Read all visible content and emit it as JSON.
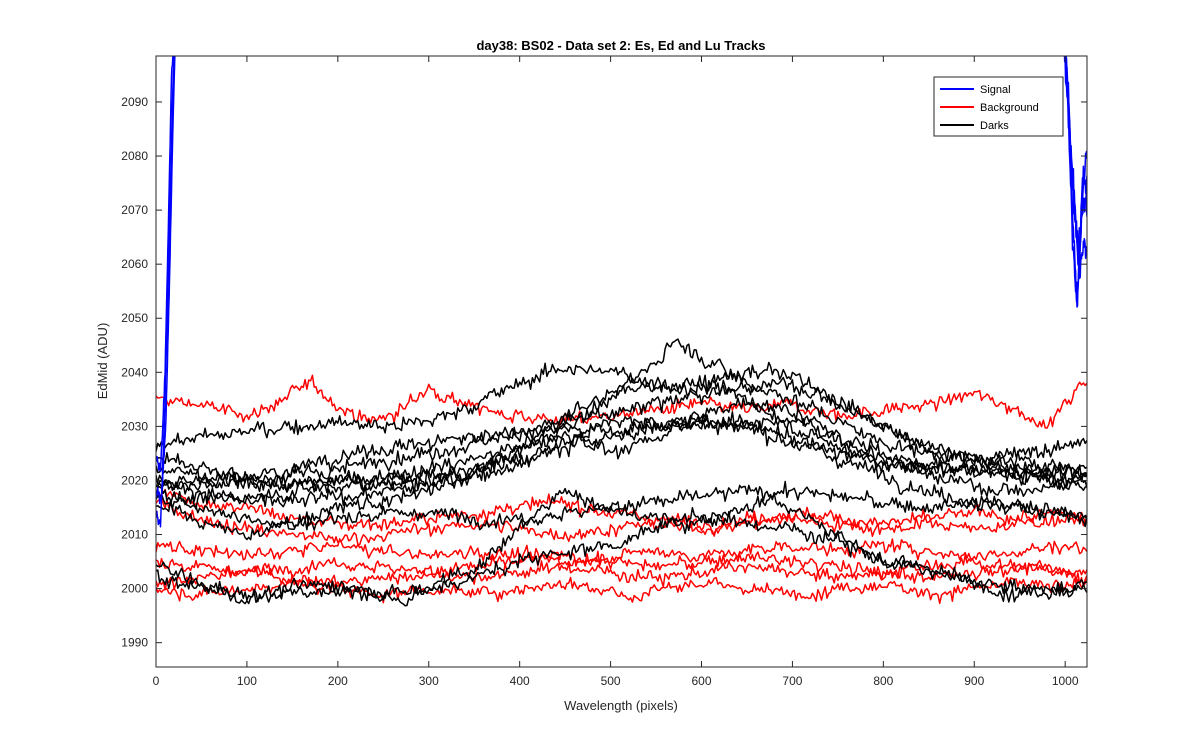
{
  "chart_data": {
    "type": "line",
    "title": "day38: BS02 - Data set 2: Es, Ed and Lu Tracks",
    "xlabel": "Wavelength (pixels)",
    "ylabel": "EdMid (ADU)",
    "xlim": [
      0,
      1024
    ],
    "ylim": [
      1985.5,
      2098.5
    ],
    "xticks": [
      0,
      100,
      200,
      300,
      400,
      500,
      600,
      700,
      800,
      900,
      1000
    ],
    "yticks": [
      1990,
      2000,
      2010,
      2020,
      2030,
      2040,
      2050,
      2060,
      2070,
      2080,
      2090
    ],
    "grid": false,
    "legend_placement": "top-right",
    "legend": [
      {
        "label": "Signal",
        "color": "#0000ff"
      },
      {
        "label": "Background",
        "color": "#ff0000"
      },
      {
        "label": "Darks",
        "color": "#000000"
      }
    ],
    "series": [
      {
        "group": "Signal",
        "color": "#0000ff",
        "noise": 0.8,
        "x": [
          0,
          5,
          10,
          14,
          18,
          20
        ],
        "y": [
          2014,
          2012,
          2035,
          2060,
          2090,
          2100
        ]
      },
      {
        "group": "Signal",
        "color": "#0000ff",
        "noise": 0.8,
        "x": [
          0,
          5,
          10,
          14,
          17,
          19
        ],
        "y": [
          2024,
          2022,
          2040,
          2070,
          2095,
          2100
        ]
      },
      {
        "group": "Signal",
        "color": "#0000ff",
        "noise": 0.8,
        "x": [
          0,
          6,
          11,
          15,
          19,
          21
        ],
        "y": [
          2018,
          2016,
          2032,
          2058,
          2088,
          2100
        ]
      },
      {
        "group": "Signal",
        "color": "#0000ff",
        "noise": 1.5,
        "x": [
          1000,
          1004,
          1008,
          1012,
          1016,
          1020,
          1024
        ],
        "y": [
          2100,
          2092,
          2070,
          2055,
          2060,
          2075,
          2082
        ]
      },
      {
        "group": "Signal",
        "color": "#0000ff",
        "noise": 1.5,
        "x": [
          999,
          1003,
          1008,
          1013,
          1018,
          1024
        ],
        "y": [
          2100,
          2088,
          2065,
          2052,
          2068,
          2075
        ]
      },
      {
        "group": "Signal",
        "color": "#0000ff",
        "noise": 1.5,
        "x": [
          1001,
          1005,
          1010,
          1015,
          1020,
          1024
        ],
        "y": [
          2100,
          2085,
          2072,
          2062,
          2078,
          2070
        ]
      },
      {
        "group": "Signal",
        "color": "#0000ff",
        "noise": 1.5,
        "x": [
          1000,
          1006,
          1011,
          1016,
          1021,
          1024
        ],
        "y": [
          2100,
          2080,
          2068,
          2058,
          2064,
          2062
        ]
      },
      {
        "group": "Background",
        "color": "#ff0000",
        "noise": 0.9,
        "x": [
          0,
          50,
          100,
          130,
          170,
          200,
          230,
          260,
          300,
          330,
          360,
          400,
          450,
          500,
          550,
          600,
          650,
          700,
          750,
          800,
          850,
          900,
          950,
          980,
          1000,
          1024
        ],
        "y": [
          2035,
          2034,
          2032,
          2034,
          2038,
          2034,
          2031,
          2032,
          2037,
          2035,
          2033,
          2032,
          2031,
          2032,
          2033,
          2034,
          2033,
          2034,
          2032,
          2033,
          2034,
          2036,
          2033,
          2030,
          2034,
          2039
        ]
      },
      {
        "group": "Background",
        "color": "#ff0000",
        "noise": 0.9,
        "x": [
          0,
          50,
          100,
          150,
          200,
          250,
          300,
          350,
          400,
          450,
          500,
          550,
          600,
          650,
          700,
          750,
          800,
          850,
          900,
          950,
          1000,
          1024
        ],
        "y": [
          2018,
          2016,
          2015,
          2013,
          2012,
          2012,
          2013,
          2014,
          2015,
          2016,
          2014,
          2013,
          2012,
          2013,
          2014,
          2013,
          2012,
          2013,
          2014,
          2013,
          2014,
          2013
        ]
      },
      {
        "group": "Background",
        "color": "#ff0000",
        "noise": 0.9,
        "x": [
          0,
          50,
          100,
          150,
          200,
          250,
          300,
          350,
          400,
          450,
          500,
          550,
          600,
          650,
          700,
          750,
          800,
          850,
          900,
          950,
          1000,
          1024
        ],
        "y": [
          2016,
          2013,
          2011,
          2010,
          2009,
          2010,
          2011,
          2012,
          2011,
          2010,
          2011,
          2012,
          2011,
          2012,
          2013,
          2012,
          2011,
          2012,
          2011,
          2012,
          2013,
          2012
        ]
      },
      {
        "group": "Background",
        "color": "#ff0000",
        "noise": 0.9,
        "x": [
          0,
          50,
          100,
          150,
          200,
          250,
          300,
          350,
          400,
          450,
          500,
          550,
          600,
          650,
          700,
          750,
          800,
          850,
          900,
          950,
          1000,
          1024
        ],
        "y": [
          2008,
          2007,
          2006,
          2007,
          2008,
          2007,
          2006,
          2007,
          2006,
          2005,
          2006,
          2007,
          2006,
          2007,
          2008,
          2007,
          2008,
          2007,
          2006,
          2007,
          2008,
          2007
        ]
      },
      {
        "group": "Background",
        "color": "#ff0000",
        "noise": 0.9,
        "x": [
          0,
          50,
          100,
          150,
          200,
          250,
          300,
          350,
          400,
          450,
          500,
          550,
          600,
          650,
          700,
          750,
          800,
          850,
          900,
          950,
          1000,
          1024
        ],
        "y": [
          2005,
          2004,
          2003,
          2004,
          2005,
          2004,
          2003,
          2004,
          2005,
          2006,
          2005,
          2004,
          2005,
          2006,
          2005,
          2004,
          2003,
          2004,
          2005,
          2004,
          2003,
          2004
        ]
      },
      {
        "group": "Background",
        "color": "#ff0000",
        "noise": 0.9,
        "x": [
          0,
          50,
          100,
          150,
          200,
          250,
          300,
          350,
          400,
          450,
          500,
          550,
          600,
          650,
          700,
          750,
          800,
          850,
          900,
          950,
          1000,
          1024
        ],
        "y": [
          2001,
          2002,
          2003,
          2002,
          2001,
          2002,
          2003,
          2002,
          2003,
          2004,
          2003,
          2002,
          2003,
          2004,
          2003,
          2002,
          2003,
          2002,
          2003,
          2004,
          2003,
          2002
        ]
      },
      {
        "group": "Background",
        "color": "#ff0000",
        "noise": 0.9,
        "x": [
          0,
          50,
          100,
          150,
          200,
          250,
          300,
          350,
          400,
          450,
          500,
          520,
          550,
          600,
          650,
          700,
          750,
          800,
          850,
          900,
          950,
          1000,
          1024
        ],
        "y": [
          2000,
          1999,
          2000,
          2001,
          2000,
          1999,
          2000,
          1999,
          2000,
          2001,
          2000,
          1998,
          2000,
          2001,
          2000,
          1999,
          2000,
          2001,
          1999,
          2000,
          2001,
          2000,
          2001
        ]
      },
      {
        "group": "Darks",
        "color": "#000000",
        "noise": 1.0,
        "x": [
          0,
          50,
          100,
          150,
          200,
          250,
          300,
          350,
          400,
          450,
          500,
          550,
          600,
          650,
          700,
          750,
          800,
          850,
          900,
          950,
          1000,
          1024
        ],
        "y": [
          2027,
          2028,
          2029,
          2030,
          2031,
          2030,
          2031,
          2034,
          2038,
          2041,
          2040,
          2038,
          2036,
          2037,
          2038,
          2034,
          2030,
          2026,
          2024,
          2022,
          2021,
          2022
        ]
      },
      {
        "group": "Darks",
        "color": "#000000",
        "noise": 1.0,
        "x": [
          0,
          50,
          100,
          150,
          200,
          250,
          300,
          350,
          400,
          450,
          500,
          550,
          570,
          600,
          650,
          700,
          750,
          800,
          850,
          900,
          950,
          1000,
          1024
        ],
        "y": [
          2022,
          2021,
          2020,
          2019,
          2020,
          2019,
          2020,
          2022,
          2025,
          2030,
          2035,
          2042,
          2046,
          2043,
          2038,
          2035,
          2031,
          2027,
          2025,
          2024,
          2022,
          2022,
          2023
        ]
      },
      {
        "group": "Darks",
        "color": "#000000",
        "noise": 1.0,
        "x": [
          0,
          50,
          100,
          150,
          200,
          250,
          300,
          350,
          400,
          450,
          500,
          550,
          600,
          650,
          700,
          750,
          800,
          850,
          900,
          950,
          1000,
          1024
        ],
        "y": [
          2020,
          2019,
          2020,
          2021,
          2022,
          2024,
          2025,
          2027,
          2029,
          2031,
          2032,
          2034,
          2037,
          2040,
          2040,
          2035,
          2030,
          2026,
          2024,
          2025,
          2026,
          2028
        ]
      },
      {
        "group": "Darks",
        "color": "#000000",
        "noise": 1.0,
        "x": [
          0,
          50,
          100,
          150,
          200,
          250,
          300,
          350,
          400,
          450,
          500,
          550,
          600,
          650,
          700,
          750,
          800,
          850,
          900,
          950,
          1000,
          1024
        ],
        "y": [
          2019,
          2020,
          2021,
          2022,
          2024,
          2026,
          2027,
          2028,
          2029,
          2030,
          2029,
          2030,
          2031,
          2030,
          2028,
          2025,
          2023,
          2022,
          2022,
          2021,
          2020,
          2020
        ]
      },
      {
        "group": "Darks",
        "color": "#000000",
        "noise": 1.0,
        "x": [
          0,
          50,
          100,
          150,
          200,
          250,
          300,
          350,
          400,
          450,
          500,
          550,
          600,
          650,
          700,
          750,
          800,
          850,
          900,
          950,
          1000,
          1024
        ],
        "y": [
          2017,
          2016,
          2017,
          2018,
          2019,
          2020,
          2021,
          2022,
          2024,
          2026,
          2028,
          2030,
          2031,
          2030,
          2027,
          2024,
          2021,
          2018,
          2016,
          2015,
          2014,
          2013
        ]
      },
      {
        "group": "Darks",
        "color": "#000000",
        "noise": 1.0,
        "x": [
          0,
          50,
          100,
          150,
          200,
          250,
          300,
          350,
          400,
          450,
          500,
          550,
          600,
          650,
          700,
          750,
          800,
          850,
          900,
          950,
          1000,
          1024
        ],
        "y": [
          2024,
          2022,
          2020,
          2019,
          2020,
          2021,
          2022,
          2024,
          2026,
          2029,
          2025,
          2028,
          2032,
          2035,
          2033,
          2028,
          2025,
          2022,
          2022,
          2021,
          2020,
          2021
        ]
      },
      {
        "group": "Darks",
        "color": "#000000",
        "noise": 1.0,
        "x": [
          0,
          50,
          100,
          150,
          200,
          250,
          300,
          350,
          400,
          450,
          500,
          550,
          600,
          650,
          700,
          750,
          800,
          850,
          900,
          950,
          1000,
          1024
        ],
        "y": [
          2016,
          2012,
          2010,
          2012,
          2015,
          2016,
          2018,
          2021,
          2026,
          2032,
          2036,
          2038,
          2038,
          2035,
          2030,
          2026,
          2024,
          2023,
          2022,
          2024,
          2022,
          2021
        ]
      },
      {
        "group": "Darks",
        "color": "#000000",
        "noise": 1.0,
        "x": [
          0,
          50,
          100,
          150,
          200,
          250,
          300,
          350,
          400,
          450,
          500,
          550,
          600,
          650,
          700,
          750,
          800,
          850,
          900,
          950,
          1000,
          1024
        ],
        "y": [
          2018,
          2015,
          2013,
          2012,
          2013,
          2014,
          2014,
          2013,
          2013,
          2014,
          2015,
          2016,
          2017,
          2018,
          2018,
          2017,
          2016,
          2015,
          2016,
          2015,
          2014,
          2013
        ]
      },
      {
        "group": "Darks",
        "color": "#000000",
        "noise": 1.0,
        "x": [
          0,
          50,
          100,
          150,
          200,
          250,
          270,
          300,
          350,
          400,
          440,
          450,
          500,
          550,
          600,
          650,
          700,
          750,
          800,
          850,
          900,
          950,
          1000,
          1024
        ],
        "y": [
          2004,
          2001,
          1998,
          1999,
          2000,
          1999,
          1997,
          2000,
          2004,
          2011,
          2017,
          2018,
          2015,
          2013,
          2013,
          2012,
          2011,
          2009,
          2005,
          2003,
          2001,
          2000,
          2000,
          2000
        ]
      },
      {
        "group": "Darks",
        "color": "#000000",
        "noise": 1.0,
        "x": [
          0,
          50,
          100,
          150,
          200,
          250,
          300,
          350,
          400,
          450,
          500,
          550,
          600,
          650,
          680,
          700,
          750,
          800,
          850,
          900,
          950,
          1000,
          1024
        ],
        "y": [
          2002,
          2000,
          1999,
          2000,
          2001,
          1999,
          2000,
          2002,
          2005,
          2007,
          2008,
          2011,
          2013,
          2015,
          2017,
          2015,
          2010,
          2005,
          2004,
          2001,
          1999,
          2000,
          2001
        ]
      },
      {
        "group": "Darks",
        "color": "#000000",
        "noise": 1.0,
        "x": [
          0,
          50,
          100,
          150,
          200,
          250,
          300,
          350,
          400,
          450,
          500,
          550,
          600,
          650,
          700,
          750,
          800,
          850,
          900,
          950,
          1000,
          1024
        ],
        "y": [
          2020,
          2018,
          2016,
          2016,
          2017,
          2018,
          2019,
          2021,
          2023,
          2027,
          2031,
          2031,
          2030,
          2031,
          2031,
          2028,
          2024,
          2021,
          2019,
          2018,
          2019,
          2019
        ]
      }
    ]
  }
}
